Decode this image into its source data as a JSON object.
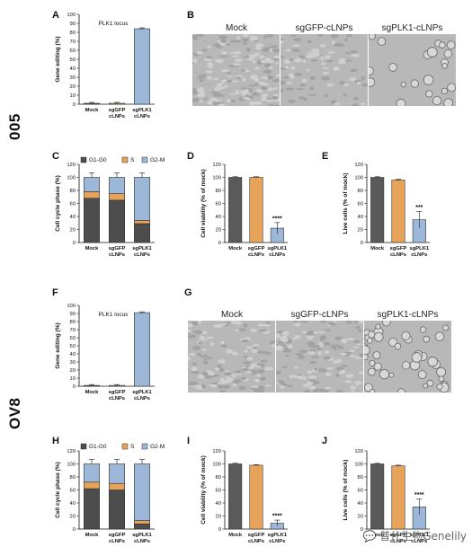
{
  "figure": {
    "cell_lines": [
      "005",
      "OV8"
    ],
    "panel_letters": [
      "A",
      "B",
      "C",
      "D",
      "E",
      "F",
      "G",
      "H",
      "I",
      "J"
    ],
    "microscopy_labels": [
      "Mock",
      "sgGFP-cLNPs",
      "sgPLK1-cLNPs"
    ],
    "watermark": "💬 普什生物Genelily",
    "colors": {
      "mock": "#5a5a5a",
      "sggfp": "#e8a35a",
      "sgplk1": "#9db7d8",
      "g1": "#4d4d4d",
      "s": "#e8a35a",
      "g2m": "#9db7d8"
    }
  },
  "chart_data": [
    {
      "panel": "A",
      "type": "bar",
      "title": "PLK1 locus",
      "ylabel": "Gene editing (%)",
      "categories": [
        "Mock",
        "sgGFP\ncLNPs",
        "sgPLK1\ncLNPs"
      ],
      "values": [
        1,
        1,
        84
      ],
      "ylim": [
        0,
        100
      ],
      "yticks": [
        0,
        10,
        20,
        30,
        40,
        50,
        60,
        70,
        80,
        90,
        100
      ]
    },
    {
      "panel": "C",
      "type": "bar",
      "stacked": true,
      "ylabel": "Cell cycle phase (%)",
      "categories": [
        "Mock",
        "sgGFP\ncLNPs",
        "sgPLK1\ncLNPs"
      ],
      "series": [
        {
          "name": "G1-G0",
          "values": [
            68,
            65,
            29
          ]
        },
        {
          "name": "S",
          "values": [
            10,
            10,
            5
          ]
        },
        {
          "name": "G2-M",
          "values": [
            22,
            25,
            66
          ]
        }
      ],
      "ylim": [
        0,
        120
      ],
      "yticks": [
        0,
        20,
        40,
        60,
        80,
        100,
        120
      ]
    },
    {
      "panel": "D",
      "type": "bar",
      "ylabel": "Cell viability (% of mock)",
      "categories": [
        "Mock",
        "sgGFP\ncLNPs",
        "sgPLK1\ncLNPs"
      ],
      "values": [
        100,
        100,
        22
      ],
      "annotation": "****",
      "ylim": [
        0,
        120
      ],
      "yticks": [
        0,
        20,
        40,
        60,
        80,
        100,
        120
      ]
    },
    {
      "panel": "E",
      "type": "bar",
      "ylabel": "Live cells (% of mock)",
      "categories": [
        "Mock",
        "sgGFP\ncLNPs",
        "sgPLK1\ncLNPs"
      ],
      "values": [
        100,
        96,
        35
      ],
      "annotation": "***",
      "ylim": [
        0,
        120
      ],
      "yticks": [
        0,
        20,
        40,
        60,
        80,
        100,
        120
      ]
    },
    {
      "panel": "F",
      "type": "bar",
      "title": "PLK1 locus",
      "ylabel": "Gene editing (%)",
      "categories": [
        "Mock",
        "sgGFP\ncLNPs",
        "sgPLK1\ncLNPs"
      ],
      "values": [
        1,
        1,
        91
      ],
      "ylim": [
        0,
        100
      ],
      "yticks": [
        0,
        10,
        20,
        30,
        40,
        50,
        60,
        70,
        80,
        90,
        100
      ]
    },
    {
      "panel": "H",
      "type": "bar",
      "stacked": true,
      "ylabel": "Cell cycle phase (%)",
      "categories": [
        "Mock",
        "sgGFP\ncLNPs",
        "sgPLK1\ncLNPs"
      ],
      "series": [
        {
          "name": "G1-G0",
          "values": [
            62,
            60,
            8
          ]
        },
        {
          "name": "S",
          "values": [
            10,
            10,
            5
          ]
        },
        {
          "name": "G2-M",
          "values": [
            28,
            30,
            87
          ]
        }
      ],
      "ylim": [
        0,
        120
      ],
      "yticks": [
        0,
        20,
        40,
        60,
        80,
        100,
        120
      ]
    },
    {
      "panel": "I",
      "type": "bar",
      "ylabel": "Cell viability (% of mock)",
      "categories": [
        "Mock",
        "sgGFP\ncLNPs",
        "sgPLK1\ncLNPs"
      ],
      "values": [
        100,
        98,
        9
      ],
      "annotation": "****",
      "ylim": [
        0,
        120
      ],
      "yticks": [
        0,
        20,
        40,
        60,
        80,
        100,
        120
      ]
    },
    {
      "panel": "J",
      "type": "bar",
      "ylabel": "Live cells (% of mock)",
      "categories": [
        "Mock",
        "sgGFP\ncLNPs",
        "sgPLK1\ncLNPs"
      ],
      "values": [
        100,
        97,
        34
      ],
      "annotation": "****",
      "ylim": [
        0,
        120
      ],
      "yticks": [
        0,
        20,
        40,
        60,
        80,
        100,
        120
      ]
    }
  ]
}
